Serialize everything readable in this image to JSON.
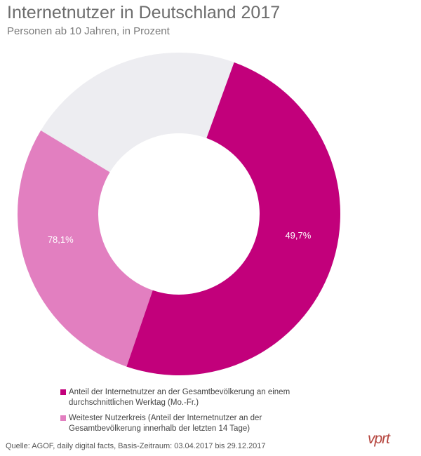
{
  "title": "Internetnutzer in Deutschland 2017",
  "subtitle": "Personen ab 10 Jahren, in Prozent",
  "chart_data": {
    "type": "pie",
    "title": "Internetnutzer in Deutschland 2017",
    "subtitle": "Personen ab 10 Jahren, in Prozent",
    "donut": true,
    "unit": "%",
    "series": [
      {
        "name": "Anteil der Internetnutzer an der Gesamtbevölkerung an einem durchschnittlichen Werktag (Mo.-Fr.)",
        "value": 49.7,
        "label": "49,7%",
        "color": "#c2007b"
      },
      {
        "name": "Weitester Nutzerkreis (Anteil der Internetnutzer an der Gesamtbevölkerung innerhalb der letzten 14 Tage)",
        "value": 78.1,
        "label": "78,1%",
        "color": "#e27fc0"
      }
    ],
    "remainder_color": "#ededf1",
    "legend_position": "bottom"
  },
  "legend": {
    "items": [
      {
        "line1": "Anteil der Internetnutzer an der Gesamtbevölkerung an einem",
        "line2": "durchschnittlichen Werktag (Mo.-Fr.)"
      },
      {
        "line1": "Weitester Nutzerkreis (Anteil der Internetnutzer an der",
        "line2": "Gesamtbevölkerung innerhalb der letzten 14 Tage)"
      }
    ]
  },
  "source": "Quelle: AGOF, daily digital facts, Basis-Zeitraum: 03.04.2017 bis 29.12.2017",
  "logo": {
    "text": "vprt",
    "color": "#b5453e"
  }
}
